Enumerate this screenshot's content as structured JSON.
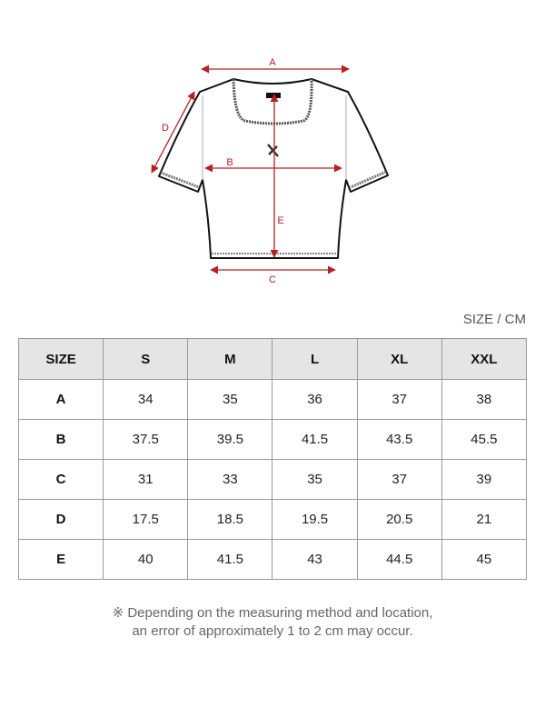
{
  "diagram": {
    "labels": {
      "a": "A",
      "b": "B",
      "c": "C",
      "d": "D",
      "e": "E"
    },
    "arrow_color": "#b32025"
  },
  "unit_label": "SIZE / CM",
  "table": {
    "headers": [
      "SIZE",
      "S",
      "M",
      "L",
      "XL",
      "XXL"
    ],
    "rows": [
      {
        "label": "A",
        "values": [
          "34",
          "35",
          "36",
          "37",
          "38"
        ]
      },
      {
        "label": "B",
        "values": [
          "37.5",
          "39.5",
          "41.5",
          "43.5",
          "45.5"
        ]
      },
      {
        "label": "C",
        "values": [
          "31",
          "33",
          "35",
          "37",
          "39"
        ]
      },
      {
        "label": "D",
        "values": [
          "17.5",
          "18.5",
          "19.5",
          "20.5",
          "21"
        ]
      },
      {
        "label": "E",
        "values": [
          "40",
          "41.5",
          "43",
          "44.5",
          "45"
        ]
      }
    ]
  },
  "note": {
    "line1": "※ Depending on the measuring method and location,",
    "line2": "an error of approximately 1 to 2 cm may occur."
  }
}
